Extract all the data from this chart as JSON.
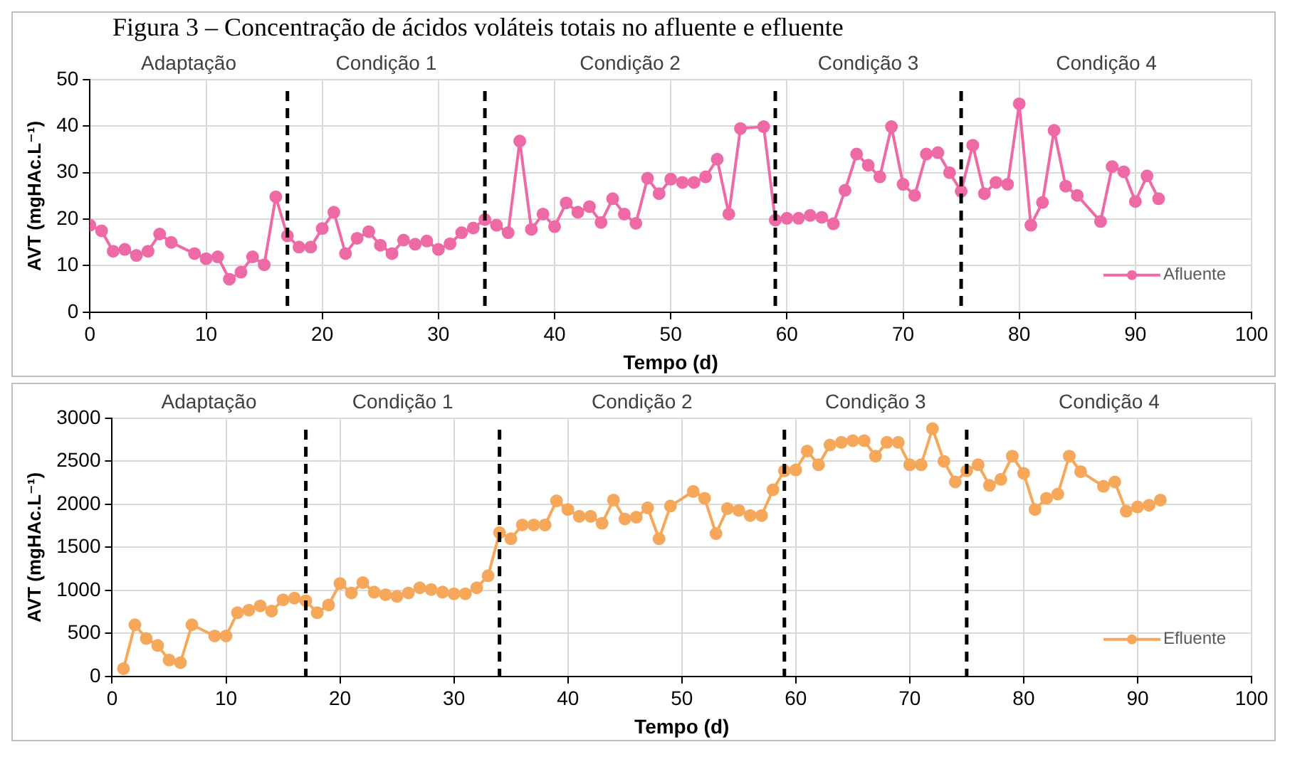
{
  "chart_data": [
    {
      "type": "line",
      "title": "Figura 3 – Concentração de ácidos voláteis totais no afluente e efluente",
      "xlabel": "Tempo (d)",
      "ylabel": "AVT (mgHAc.L⁻¹)",
      "x": [
        0,
        1,
        2,
        3,
        4,
        5,
        6,
        7,
        9,
        10,
        11,
        12,
        13,
        14,
        15,
        16,
        17,
        18,
        19,
        20,
        21,
        22,
        23,
        24,
        25,
        26,
        27,
        28,
        29,
        30,
        31,
        32,
        33,
        34,
        35,
        36,
        37,
        38,
        39,
        40,
        41,
        42,
        43,
        44,
        45,
        46,
        47,
        48,
        49,
        50,
        51,
        52,
        53,
        54,
        55,
        56,
        58,
        59,
        60,
        61,
        62,
        63,
        64,
        65,
        66,
        67,
        68,
        69,
        70,
        71,
        72,
        73,
        74,
        75,
        76,
        77,
        78,
        79,
        80,
        81,
        82,
        83,
        84,
        85,
        87,
        88,
        89,
        90,
        91,
        92
      ],
      "series": [
        {
          "name": "Afluente",
          "color": "#ee6aa7",
          "values": [
            18.7,
            17.5,
            13.1,
            13.5,
            12.2,
            13.1,
            16.8,
            15,
            12.6,
            11.5,
            11.9,
            7.1,
            8.6,
            11.9,
            10.2,
            24.8,
            16.4,
            14,
            14,
            18,
            21.5,
            12.6,
            15.9,
            17.3,
            14.4,
            12.6,
            15.5,
            14.6,
            15.3,
            13.5,
            14.7,
            17.1,
            18.1,
            19.9,
            18.7,
            17.1,
            36.8,
            17.8,
            21.1,
            18.4,
            23.5,
            21.5,
            22.7,
            19.3,
            24.4,
            21.1,
            19.1,
            28.8,
            25.5,
            28.6,
            27.9,
            27.9,
            29.1,
            32.9,
            21.1,
            39.5,
            39.9,
            19.8,
            20.2,
            20.2,
            20.8,
            20.4,
            19,
            26.2,
            34,
            31.6,
            29.1,
            39.9,
            27.5,
            25.1,
            34,
            34.3,
            30,
            26,
            35.9,
            25.5,
            27.9,
            27.5,
            44.8,
            18.7,
            23.6,
            39.1,
            27.1,
            25.1,
            19.5,
            31.3,
            30.2,
            23.8,
            29.3,
            24.4
          ]
        }
      ],
      "xlim": [
        0,
        100
      ],
      "xticks": [
        0,
        10,
        20,
        30,
        40,
        50,
        60,
        70,
        80,
        90,
        100
      ],
      "ylim": [
        0,
        50
      ],
      "yticks": [
        0,
        10,
        20,
        30,
        40,
        50
      ],
      "grid": true,
      "legend": "bottom right",
      "marker": "circle",
      "line_style": "solid",
      "ref_lines": [
        {
          "axis": "x",
          "value": 17,
          "color": "#000000",
          "line_style": "dashed"
        },
        {
          "axis": "x",
          "value": 34,
          "color": "#000000",
          "line_style": "dashed"
        },
        {
          "axis": "x",
          "value": 59,
          "color": "#000000",
          "line_style": "dashed"
        },
        {
          "axis": "x",
          "value": 75,
          "color": "#000000",
          "line_style": "dashed"
        }
      ],
      "annotations": [
        "Adaptação",
        "Condição 1",
        "Condição 2",
        "Condição 3",
        "Condição 4"
      ]
    },
    {
      "type": "line",
      "xlabel": "Tempo (d)",
      "ylabel": "AVT (mgHAc.L⁻¹)",
      "x": [
        1,
        2,
        3,
        4,
        5,
        6,
        7,
        9,
        10,
        11,
        12,
        13,
        14,
        15,
        16,
        17,
        18,
        19,
        20,
        21,
        22,
        23,
        24,
        25,
        26,
        27,
        28,
        29,
        30,
        31,
        32,
        33,
        34,
        35,
        36,
        37,
        38,
        39,
        40,
        41,
        42,
        43,
        44,
        45,
        46,
        47,
        48,
        49,
        51,
        52,
        53,
        54,
        55,
        56,
        57,
        58,
        59,
        60,
        61,
        62,
        63,
        64,
        65,
        66,
        67,
        68,
        69,
        70,
        71,
        72,
        73,
        74,
        75,
        76,
        77,
        78,
        79,
        80,
        81,
        82,
        83,
        84,
        85,
        87,
        88,
        89,
        90,
        91,
        92
      ],
      "series": [
        {
          "name": "Efluente",
          "color": "#f5a85a",
          "values": [
            90,
            600,
            440,
            360,
            190,
            160,
            600,
            470,
            470,
            740,
            770,
            820,
            760,
            890,
            910,
            880,
            740,
            830,
            1080,
            970,
            1090,
            980,
            950,
            930,
            970,
            1030,
            1010,
            980,
            960,
            960,
            1030,
            1170,
            1670,
            1600,
            1760,
            1760,
            1760,
            2040,
            1940,
            1860,
            1860,
            1780,
            2050,
            1830,
            1850,
            1960,
            1600,
            1980,
            2150,
            2070,
            1660,
            1950,
            1930,
            1870,
            1870,
            2170,
            2390,
            2400,
            2620,
            2460,
            2690,
            2720,
            2740,
            2740,
            2560,
            2720,
            2720,
            2460,
            2460,
            2880,
            2500,
            2260,
            2390,
            2460,
            2220,
            2290,
            2560,
            2360,
            1940,
            2070,
            2120,
            2560,
            2380,
            2210,
            2260,
            1920,
            1970,
            1990,
            2050
          ]
        }
      ],
      "xlim": [
        0,
        100
      ],
      "xticks": [
        0,
        10,
        20,
        30,
        40,
        50,
        60,
        70,
        80,
        90,
        100
      ],
      "ylim": [
        0,
        3000
      ],
      "yticks": [
        0,
        500,
        1000,
        1500,
        2000,
        2500,
        3000
      ],
      "grid": true,
      "legend": "bottom right",
      "marker": "circle",
      "line_style": "solid",
      "ref_lines": [
        {
          "axis": "x",
          "value": 17,
          "color": "#000000",
          "line_style": "dashed"
        },
        {
          "axis": "x",
          "value": 34,
          "color": "#000000",
          "line_style": "dashed"
        },
        {
          "axis": "x",
          "value": 59,
          "color": "#000000",
          "line_style": "dashed"
        },
        {
          "axis": "x",
          "value": 75,
          "color": "#000000",
          "line_style": "dashed"
        }
      ],
      "annotations": [
        "Adaptação",
        "Condição 1",
        "Condição 2",
        "Condição 3",
        "Condição 4"
      ]
    }
  ]
}
